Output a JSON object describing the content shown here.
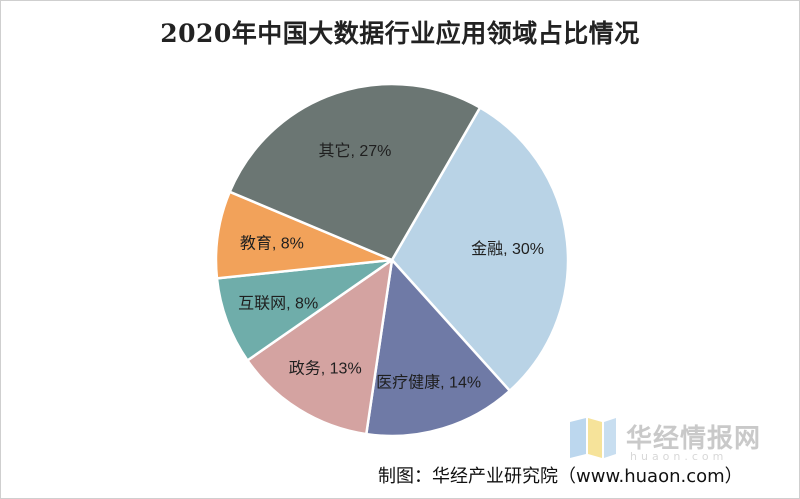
{
  "chart_data": {
    "type": "pie",
    "title": "2020年中国大数据行业应用领域占比情况",
    "slices": [
      {
        "label": "金融",
        "value": 30,
        "display": "金融, 30%",
        "color": "#b9d3e6"
      },
      {
        "label": "医疗健康",
        "value": 14,
        "display": "医疗健康, 14%",
        "color": "#6f7aa6"
      },
      {
        "label": "政务",
        "value": 13,
        "display": "政务, 13%",
        "color": "#d4a3a1"
      },
      {
        "label": "互联网",
        "value": 8,
        "display": "互联网, 8%",
        "color": "#6fadaa"
      },
      {
        "label": "教育",
        "value": 8,
        "display": "教育, 8%",
        "color": "#f2a25a"
      },
      {
        "label": "其它",
        "value": 27,
        "display": "其它, 27%",
        "color": "#6b7673"
      }
    ],
    "start_angle_deg": 30,
    "legend": "none"
  },
  "watermark": {
    "brand": "华经情报网",
    "url": "huaon.com"
  },
  "source": "制图：华经产业研究院（www.huaon.com）"
}
